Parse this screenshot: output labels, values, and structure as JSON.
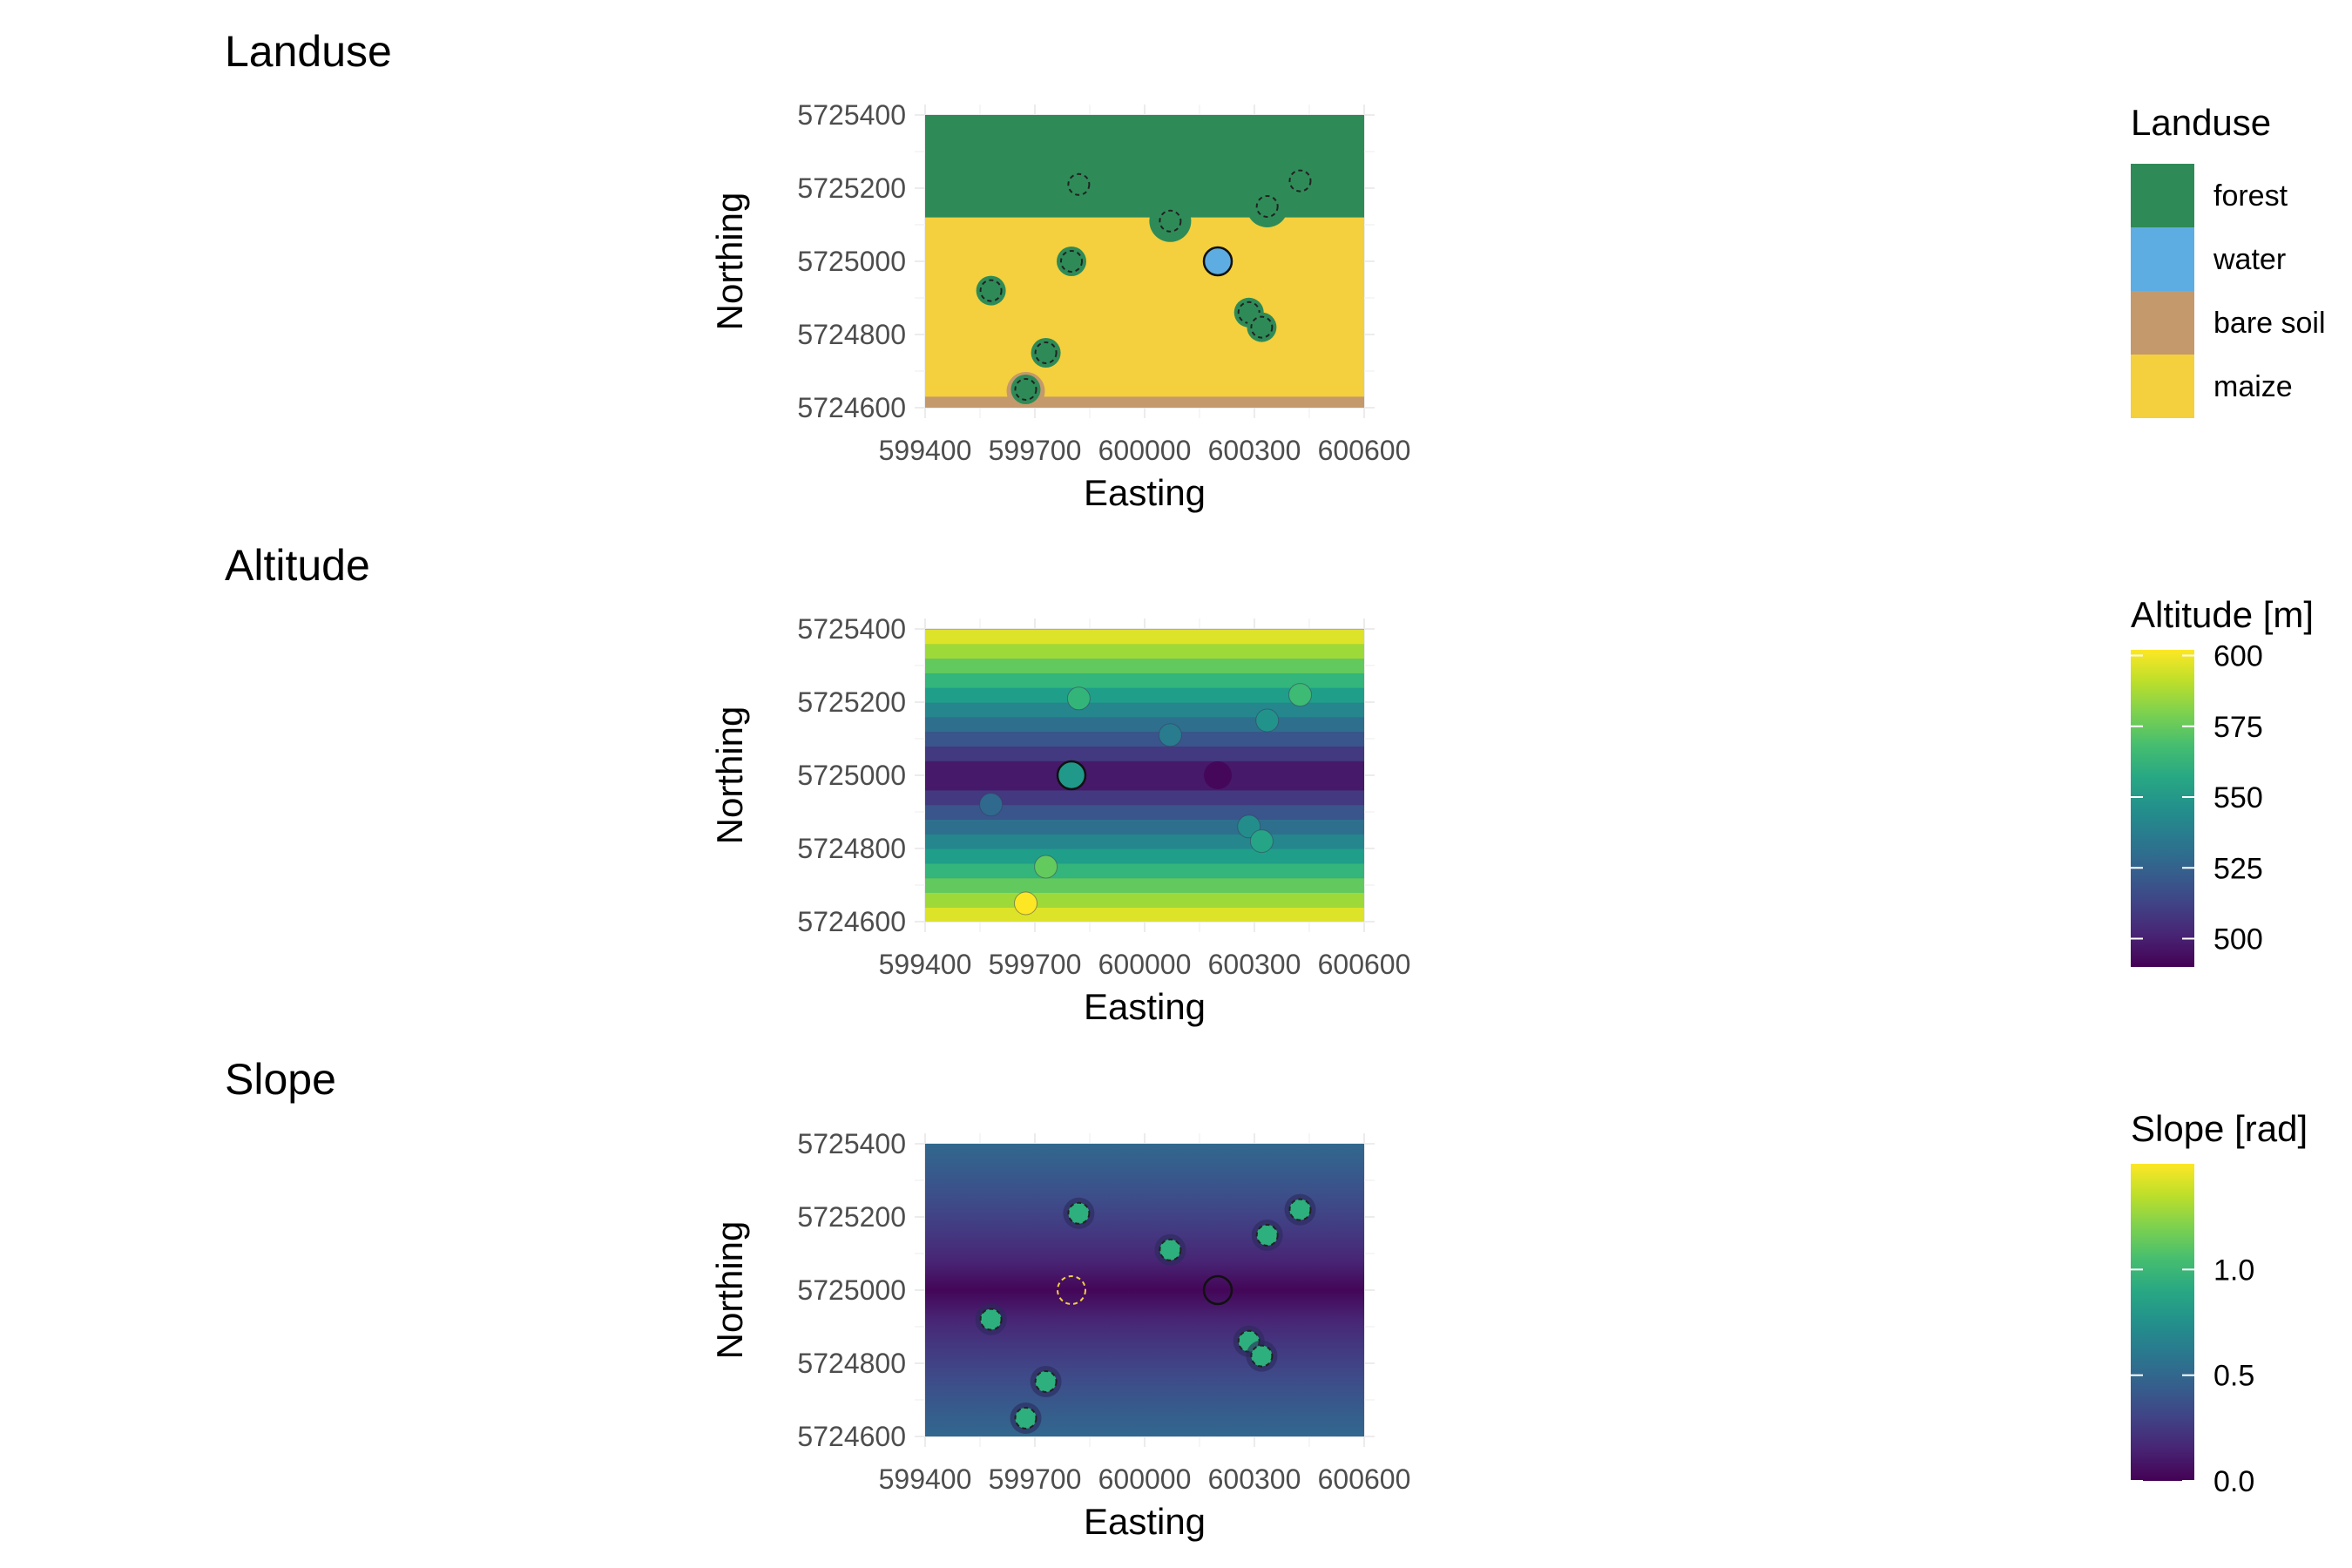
{
  "chart_data": [
    {
      "type": "heatmap",
      "title": "Landuse",
      "xlabel": "Easting",
      "ylabel": "Northing",
      "xlim": [
        599400,
        600600
      ],
      "ylim": [
        5724600,
        5725400
      ],
      "x_ticks": [
        "599400",
        "599700",
        "600000",
        "600300",
        "600600"
      ],
      "y_ticks": [
        "5724600",
        "5724800",
        "5725000",
        "5725200",
        "5725400"
      ],
      "grid": true,
      "legend": {
        "title": "Landuse",
        "position": "right",
        "entries": [
          {
            "label": "forest",
            "color": "#2e8b57"
          },
          {
            "label": "water",
            "color": "#5dade2"
          },
          {
            "label": "bare soil",
            "color": "#c4996c"
          },
          {
            "label": "maize",
            "color": "#f4cf3e"
          }
        ]
      },
      "zones": [
        {
          "class": "forest",
          "y_range": [
            5725120,
            5725400
          ]
        },
        {
          "class": "maize",
          "y_range": [
            5724630,
            5725120
          ]
        },
        {
          "class": "bare soil",
          "y_range": [
            5724600,
            5724630
          ]
        }
      ],
      "forest_patches": [
        {
          "x": 599580,
          "y": 5724920
        },
        {
          "x": 599675,
          "y": 5724650
        },
        {
          "x": 599730,
          "y": 5724750
        },
        {
          "x": 599800,
          "y": 5725000
        },
        {
          "x": 600070,
          "y": 5725110
        },
        {
          "x": 600285,
          "y": 5724860
        },
        {
          "x": 600320,
          "y": 5724820
        },
        {
          "x": 600335,
          "y": 5725150
        },
        {
          "x": 600425,
          "y": 5725220
        },
        {
          "x": 599820,
          "y": 5725210
        }
      ],
      "water_point": {
        "x": 600200,
        "y": 5725000
      }
    },
    {
      "type": "heatmap",
      "title": "Altitude",
      "xlabel": "Easting",
      "ylabel": "Northing",
      "xlim": [
        599400,
        600600
      ],
      "ylim": [
        5724600,
        5725400
      ],
      "x_ticks": [
        "599400",
        "599700",
        "600000",
        "600300",
        "600600"
      ],
      "y_ticks": [
        "5724600",
        "5724800",
        "5725000",
        "5725200",
        "5725400"
      ],
      "grid": true,
      "legend": {
        "title": "Altitude [m]",
        "position": "right",
        "range": [
          490,
          602
        ],
        "ticks": [
          "600",
          "575",
          "550",
          "525",
          "500"
        ],
        "tick_values": [
          600,
          575,
          550,
          525,
          500
        ],
        "colormap": "viridis"
      },
      "altitude_min": 492,
      "altitude_max": 602,
      "highlighted_points": [
        {
          "x": 599800,
          "y": 5725000,
          "value": 550
        },
        {
          "x": 600200,
          "y": 5725000,
          "value": 492
        }
      ]
    },
    {
      "type": "heatmap",
      "title": "Slope",
      "xlabel": "Easting",
      "ylabel": "Northing",
      "xlim": [
        599400,
        600600
      ],
      "ylim": [
        5724600,
        5725400
      ],
      "x_ticks": [
        "599400",
        "599700",
        "600000",
        "600300",
        "600600"
      ],
      "y_ticks": [
        "5724600",
        "5724800",
        "5725000",
        "5725200",
        "5725400"
      ],
      "grid": true,
      "legend": {
        "title": "Slope [rad]",
        "position": "right",
        "range": [
          0,
          1.5
        ],
        "ticks": [
          "1.0",
          "0.5",
          "0.0"
        ],
        "tick_values": [
          1.0,
          0.5,
          0.0
        ],
        "colormap": "viridis"
      },
      "background_slope_edge": 0.5,
      "background_slope_center": 0.02
    }
  ]
}
